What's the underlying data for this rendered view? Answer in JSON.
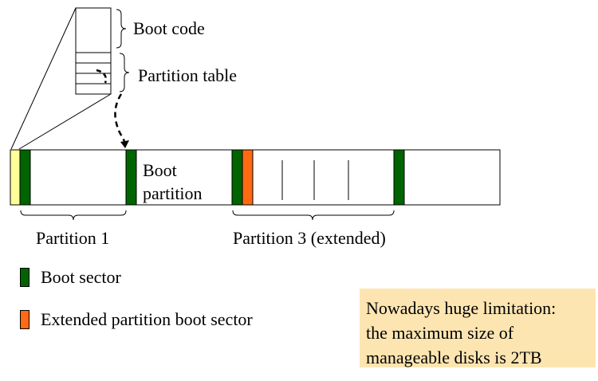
{
  "mbr": {
    "boot_code_label": "Boot code",
    "partition_table_label": "Partition table"
  },
  "disk": {
    "boot_partition_label": "Boot\npartition",
    "partition1_label": "Partition 1",
    "partition3_label": "Partition 3 (extended)"
  },
  "legend": {
    "boot_sector_label": "Boot sector",
    "boot_sector_color": "#006400",
    "extended_label": "Extended partition boot sector",
    "extended_color": "#ff6a13"
  },
  "note": {
    "line1": "Nowadays huge limitation:",
    "line2": "the maximum size of",
    "line3": "manageable disks is 2TB",
    "background": "#fde5b1"
  },
  "colors": {
    "mbr_sector": "#ffff99"
  }
}
